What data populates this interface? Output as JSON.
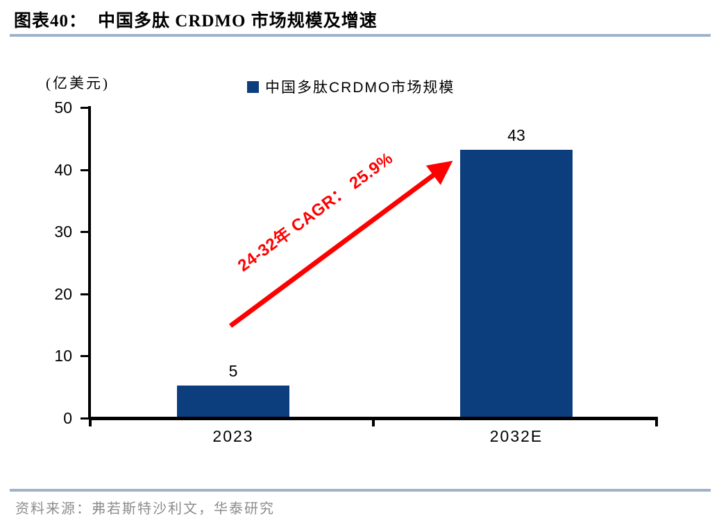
{
  "header": {
    "title_prefix": "图表40：",
    "title_text": "中国多肽 CRDMO 市场规模及增速"
  },
  "chart_data": {
    "type": "bar",
    "title": "中国多肽 CRDMO 市场规模及增速",
    "unit_label": "(亿美元)",
    "categories": [
      "2023",
      "2032E"
    ],
    "values": [
      5,
      43
    ],
    "series": [
      {
        "name": "中国多肽CRDMO市场规模",
        "values": [
          5,
          43
        ]
      }
    ],
    "ylim": [
      0,
      50
    ],
    "yticks": [
      0,
      10,
      20,
      30,
      40,
      50
    ],
    "grid": false,
    "legend_position": "top-center",
    "annotation": {
      "text": "24-32年 CAGR： 25.9%"
    }
  },
  "legend": {
    "label": "中国多肽CRDMO市场规模"
  },
  "footer": {
    "source": "资料来源：弗若斯特沙利文，华泰研究"
  },
  "colors": {
    "bar": "#0C3D7C",
    "arrow": "#FF0000",
    "rule": "#9EB3CA",
    "source_text": "#8C8C8C",
    "axis": "#000000"
  }
}
